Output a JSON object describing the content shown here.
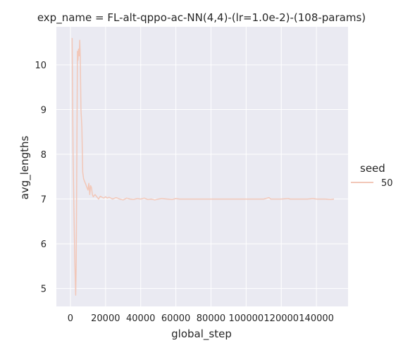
{
  "chart_data": {
    "type": "line",
    "title": "exp_name = FL-alt-qppo-ac-NN(4,4)-(lr=1.0e-2)-(108-params)",
    "xlabel": "global_step",
    "ylabel": "avg_lengths",
    "xlim": [
      -8000,
      158000
    ],
    "ylim": [
      4.6,
      10.85
    ],
    "xticks": [
      0,
      20000,
      40000,
      60000,
      80000,
      100000,
      120000,
      140000
    ],
    "xtick_labels": [
      "0",
      "20000",
      "40000",
      "60000",
      "80000",
      "100000",
      "120000",
      "140000"
    ],
    "yticks": [
      5,
      6,
      7,
      8,
      9,
      10
    ],
    "ytick_labels": [
      "5",
      "6",
      "7",
      "8",
      "9",
      "10"
    ],
    "grid": true,
    "background": "#eaeaf2",
    "grid_color": "#ffffff",
    "legend": {
      "title": "seed",
      "placement": "right",
      "entries": [
        "50"
      ]
    },
    "series": [
      {
        "name": "50",
        "color": "#f2c7b8",
        "x": [
          1000,
          1500,
          2000,
          2500,
          3000,
          3300,
          3600,
          4000,
          4300,
          4600,
          5000,
          5300,
          5600,
          6000,
          6500,
          7000,
          7500,
          8000,
          8500,
          9000,
          9500,
          10000,
          10500,
          11000,
          11500,
          12000,
          12500,
          13000,
          14000,
          15000,
          16000,
          17000,
          18000,
          19000,
          20000,
          21000,
          22000,
          24000,
          26000,
          28000,
          30000,
          32000,
          34000,
          36000,
          38000,
          40000,
          42000,
          44000,
          46000,
          48000,
          50000,
          52000,
          55000,
          58000,
          60000,
          62000,
          65000,
          70000,
          75000,
          80000,
          85000,
          90000,
          95000,
          100000,
          105000,
          110000,
          113000,
          114000,
          115000,
          120000,
          124000,
          125000,
          128000,
          130000,
          135000,
          138000,
          140000,
          145000,
          148000,
          150000
        ],
        "values": [
          10.6,
          8.0,
          6.8,
          5.6,
          4.85,
          5.6,
          7.5,
          10.3,
          10.1,
          10.35,
          10.2,
          10.55,
          10.2,
          9.0,
          8.6,
          7.6,
          7.45,
          7.4,
          7.35,
          7.3,
          7.25,
          7.2,
          7.35,
          7.1,
          7.3,
          7.25,
          7.1,
          7.05,
          7.1,
          7.05,
          7.0,
          7.06,
          7.04,
          7.02,
          7.05,
          7.02,
          7.04,
          7.0,
          7.03,
          7.0,
          6.98,
          7.02,
          7.0,
          6.99,
          7.01,
          7.0,
          7.02,
          6.99,
          7.0,
          6.98,
          7.0,
          7.01,
          7.0,
          6.99,
          7.01,
          7.0,
          7.0,
          7.0,
          7.0,
          7.0,
          7.0,
          7.0,
          7.0,
          7.0,
          7.0,
          7.0,
          7.03,
          7.0,
          7.0,
          7.0,
          7.01,
          7.0,
          7.0,
          7.0,
          7.0,
          7.01,
          7.0,
          7.0,
          6.99,
          7.0
        ]
      }
    ]
  }
}
